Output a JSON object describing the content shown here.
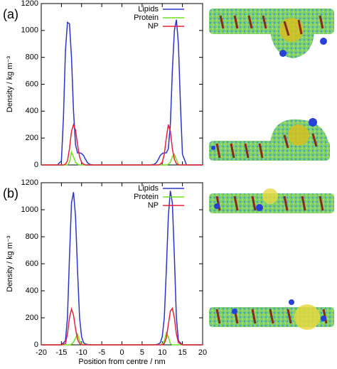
{
  "chart_data": [
    {
      "type": "line",
      "panel": "(a)",
      "ylabel": "Density / kg m⁻³",
      "x": [
        -20,
        -16,
        -15,
        -14.5,
        -14,
        -13.5,
        -13,
        -12.5,
        -12,
        -11.5,
        -11,
        -10.5,
        -10,
        -9.5,
        -9,
        -8.5,
        -8,
        -7,
        0,
        7,
        8,
        8.5,
        9,
        9.5,
        10,
        10.5,
        11,
        11.5,
        12,
        12.5,
        13,
        13.5,
        14,
        14.5,
        15,
        16,
        20
      ],
      "series": [
        {
          "name": "Lipids",
          "color": "#2b35c8",
          "values": [
            0,
            0,
            30,
            350,
            850,
            1060,
            1050,
            800,
            400,
            150,
            90,
            90,
            85,
            70,
            40,
            15,
            5,
            0,
            0,
            0,
            5,
            15,
            40,
            70,
            85,
            90,
            90,
            120,
            300,
            700,
            1000,
            1080,
            900,
            450,
            80,
            0,
            0
          ]
        },
        {
          "name": "Protein",
          "color": "#6ee01e",
          "values": [
            0,
            0,
            0,
            0,
            0,
            0,
            20,
            95,
            60,
            20,
            5,
            0,
            0,
            0,
            0,
            0,
            0,
            0,
            0,
            0,
            0,
            0,
            0,
            0,
            0,
            0,
            0,
            5,
            20,
            60,
            80,
            40,
            5,
            0,
            0,
            0,
            0
          ]
        },
        {
          "name": "NP",
          "color": "#e8203c",
          "values": [
            0,
            0,
            0,
            0,
            5,
            30,
            120,
            250,
            300,
            260,
            150,
            60,
            20,
            5,
            0,
            0,
            0,
            0,
            0,
            0,
            0,
            0,
            0,
            5,
            20,
            80,
            200,
            300,
            250,
            120,
            40,
            10,
            0,
            0,
            0,
            0,
            0
          ]
        }
      ],
      "xlim": [
        -20,
        20
      ],
      "xticks": [
        -20,
        -15,
        -10,
        -5,
        0,
        5,
        10,
        15,
        20
      ],
      "ylim": [
        0,
        1200
      ],
      "yticks": [
        0,
        200,
        400,
        600,
        800,
        1000,
        1200
      ],
      "legend": "upper right"
    },
    {
      "type": "line",
      "panel": "(b)",
      "ylabel": "Density / kg m⁻³",
      "xlabel": "Position from centre / nm",
      "x": [
        -20,
        -15,
        -14,
        -13.5,
        -13,
        -12.5,
        -12,
        -11.5,
        -11,
        -10.5,
        -10,
        -9.5,
        -9,
        -8,
        0,
        8,
        9,
        9.5,
        10,
        10.5,
        11,
        11.5,
        12,
        12.5,
        13,
        13.5,
        14,
        15,
        20
      ],
      "series": [
        {
          "name": "Lipids",
          "color": "#2b35c8",
          "values": [
            0,
            0,
            30,
            200,
            650,
            1050,
            1130,
            950,
            550,
            200,
            60,
            15,
            5,
            0,
            0,
            0,
            5,
            15,
            60,
            200,
            550,
            950,
            1140,
            1050,
            650,
            200,
            30,
            0,
            0
          ]
        },
        {
          "name": "Protein",
          "color": "#6ee01e",
          "values": [
            0,
            0,
            0,
            0,
            0,
            5,
            20,
            50,
            80,
            30,
            5,
            0,
            0,
            0,
            0,
            0,
            0,
            0,
            5,
            30,
            90,
            60,
            10,
            0,
            0,
            0,
            0,
            0,
            0
          ]
        },
        {
          "name": "NP",
          "color": "#e8203c",
          "values": [
            0,
            0,
            10,
            80,
            200,
            265,
            220,
            120,
            40,
            10,
            0,
            0,
            0,
            0,
            0,
            0,
            0,
            0,
            0,
            10,
            50,
            150,
            250,
            270,
            200,
            80,
            15,
            0,
            0
          ]
        }
      ],
      "xlim": [
        -20,
        20
      ],
      "xticks": [
        -20,
        -15,
        -10,
        -5,
        0,
        5,
        10,
        15,
        20
      ],
      "ylim": [
        0,
        1200
      ],
      "yticks": [
        0,
        200,
        400,
        600,
        800,
        1000,
        1200
      ],
      "legend": "upper right"
    }
  ]
}
